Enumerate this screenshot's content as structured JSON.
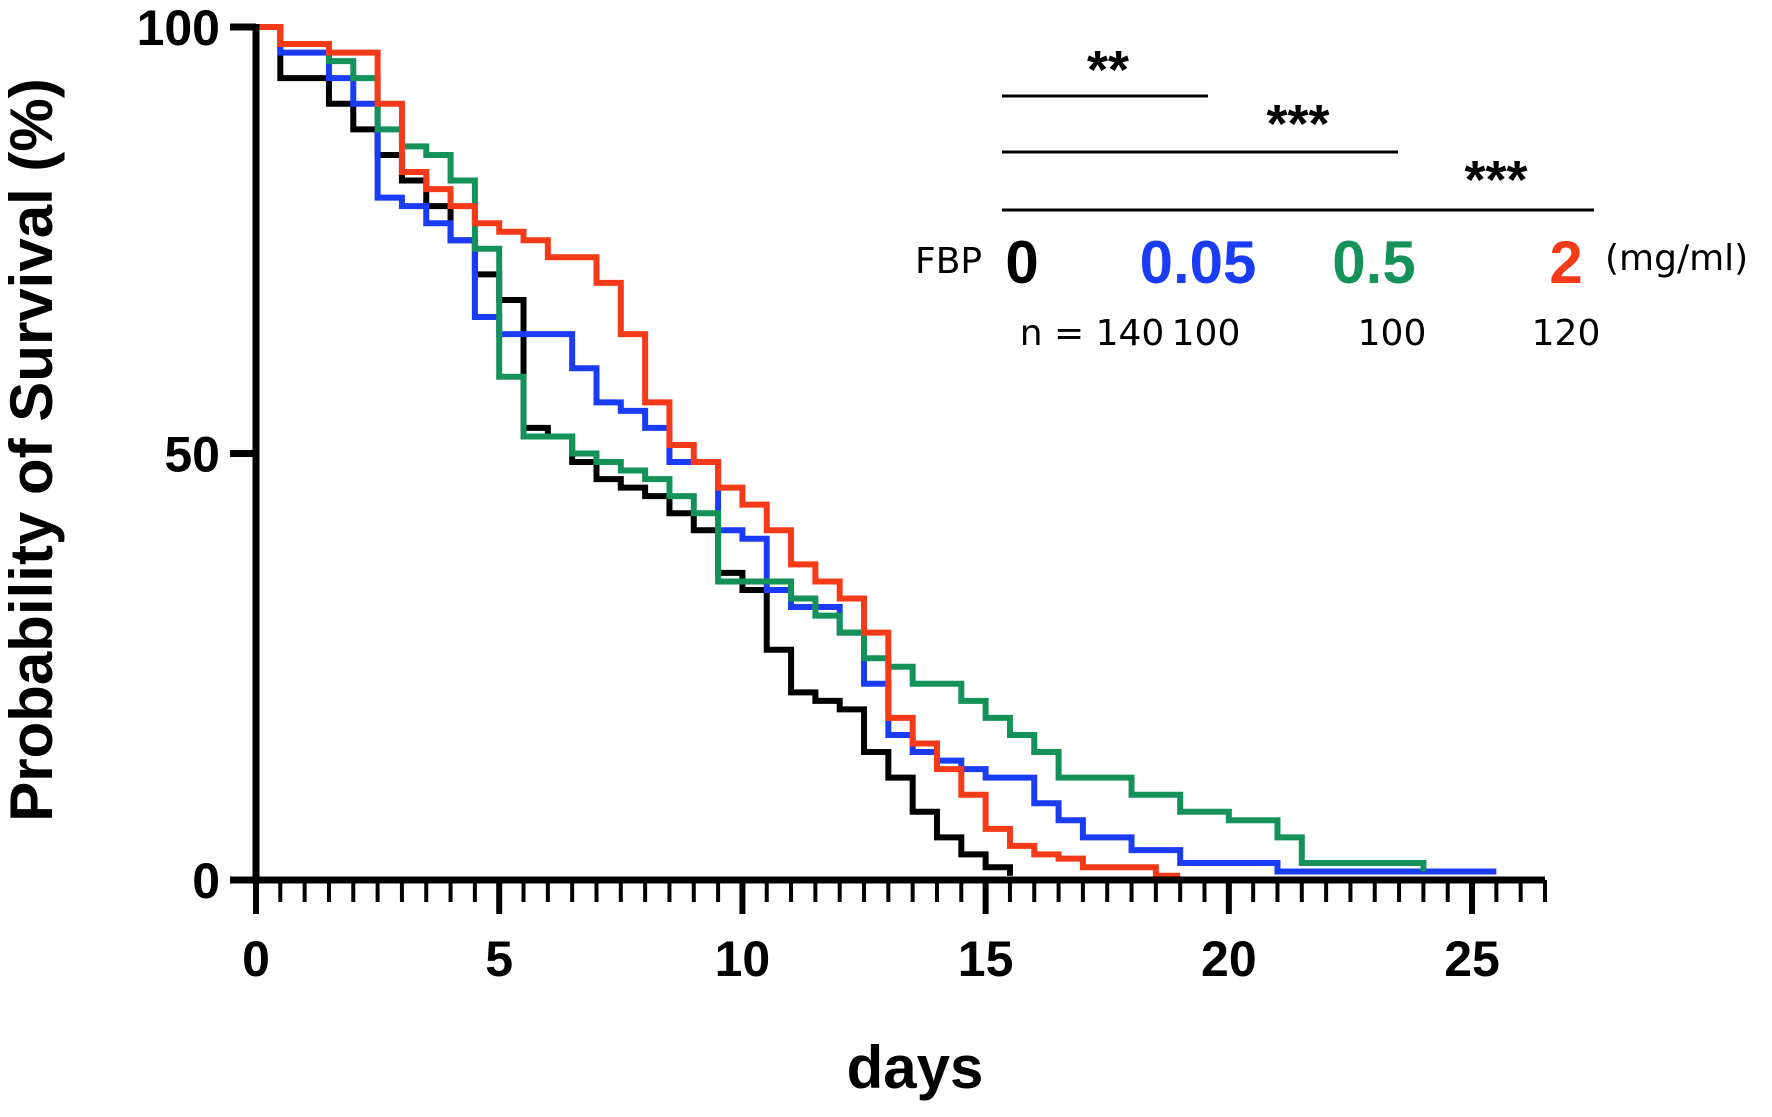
{
  "chart_data": {
    "type": "line",
    "style": "step",
    "xlabel": "days",
    "ylabel": "Probability of Survival (%)",
    "xlim": [
      0,
      26.5
    ],
    "ylim": [
      0,
      100
    ],
    "x_ticks": [
      0,
      5,
      10,
      15,
      20,
      25
    ],
    "x_minor_tick_step": 0.5,
    "y_ticks": [
      0,
      50,
      100
    ],
    "grid": false,
    "legend": {
      "placement": "top-right",
      "prefix": "FBP",
      "unit": "(mg/ml)",
      "entries": [
        {
          "label": "0",
          "n_label": "n = 140",
          "color": "#000000"
        },
        {
          "label": "0.05",
          "n_label": "100",
          "color": "#1a3cf5"
        },
        {
          "label": "0.5",
          "n_label": "100",
          "color": "#15915a"
        },
        {
          "label": "2",
          "n_label": "120",
          "color": "#f53a1a"
        }
      ]
    },
    "significance": [
      {
        "label": "**",
        "from": "0",
        "to": "0.05"
      },
      {
        "label": "***",
        "from": "0",
        "to": "0.5"
      },
      {
        "label": "***",
        "from": "0",
        "to": "2"
      }
    ],
    "series": [
      {
        "color": "#000000",
        "steps": [
          [
            0,
            100
          ],
          [
            0.5,
            94
          ],
          [
            1.5,
            91
          ],
          [
            2,
            88
          ],
          [
            2.5,
            85
          ],
          [
            3,
            82
          ],
          [
            3.5,
            79
          ],
          [
            4,
            75
          ],
          [
            4.5,
            71
          ],
          [
            5,
            68
          ],
          [
            5.5,
            63
          ],
          [
            5.5,
            53
          ],
          [
            6,
            52
          ],
          [
            6.5,
            49
          ],
          [
            7,
            47
          ],
          [
            7.5,
            46
          ],
          [
            8,
            45
          ],
          [
            8.5,
            43
          ],
          [
            9,
            41
          ],
          [
            9.5,
            36
          ],
          [
            10,
            34
          ],
          [
            10.5,
            27
          ],
          [
            11,
            22
          ],
          [
            11.5,
            21
          ],
          [
            12,
            20
          ],
          [
            12.5,
            15
          ],
          [
            13,
            12
          ],
          [
            13.5,
            8
          ],
          [
            14,
            5
          ],
          [
            14.5,
            3
          ],
          [
            15,
            1.5
          ],
          [
            15.5,
            0.5
          ]
        ],
        "end_x": 15.5
      },
      {
        "color": "#1a3cf5",
        "steps": [
          [
            0,
            100
          ],
          [
            0.5,
            97
          ],
          [
            1.5,
            94
          ],
          [
            2,
            91
          ],
          [
            2.5,
            80
          ],
          [
            3,
            79
          ],
          [
            3.5,
            77
          ],
          [
            4,
            75
          ],
          [
            4.5,
            66
          ],
          [
            5,
            64
          ],
          [
            5.5,
            64
          ],
          [
            6,
            64
          ],
          [
            6.5,
            60
          ],
          [
            7,
            56
          ],
          [
            7.5,
            55
          ],
          [
            8,
            53
          ],
          [
            8.5,
            49
          ],
          [
            9,
            49
          ],
          [
            9.5,
            41
          ],
          [
            10,
            40
          ],
          [
            10.5,
            34
          ],
          [
            11,
            32
          ],
          [
            11.5,
            32
          ],
          [
            12,
            29
          ],
          [
            12.5,
            23
          ],
          [
            13,
            17
          ],
          [
            13.5,
            15
          ],
          [
            14,
            14
          ],
          [
            14.5,
            13
          ],
          [
            15,
            12
          ],
          [
            16,
            9
          ],
          [
            16.5,
            7
          ],
          [
            17,
            5
          ],
          [
            18,
            3.5
          ],
          [
            19,
            2
          ],
          [
            21,
            1
          ],
          [
            25.5,
            1
          ]
        ],
        "end_x": 25.5
      },
      {
        "color": "#15915a",
        "steps": [
          [
            0,
            100
          ],
          [
            0.5,
            98
          ],
          [
            1.5,
            96
          ],
          [
            2,
            94
          ],
          [
            2.5,
            88
          ],
          [
            3,
            86
          ],
          [
            3.5,
            85
          ],
          [
            4,
            82
          ],
          [
            4.5,
            74
          ],
          [
            5,
            59
          ],
          [
            5.5,
            52
          ],
          [
            6,
            52
          ],
          [
            6.5,
            50
          ],
          [
            7,
            49
          ],
          [
            7.5,
            48
          ],
          [
            8,
            47
          ],
          [
            8.5,
            45
          ],
          [
            9,
            43
          ],
          [
            9.5,
            35
          ],
          [
            10,
            35
          ],
          [
            10.5,
            35
          ],
          [
            11,
            33
          ],
          [
            11.5,
            31
          ],
          [
            12,
            29
          ],
          [
            12.5,
            26
          ],
          [
            13,
            25
          ],
          [
            13.5,
            23
          ],
          [
            14,
            23
          ],
          [
            14.5,
            21
          ],
          [
            15,
            19
          ],
          [
            15.5,
            17
          ],
          [
            16,
            15
          ],
          [
            16.5,
            12
          ],
          [
            17,
            12
          ],
          [
            17.5,
            12
          ],
          [
            18,
            10
          ],
          [
            19,
            8
          ],
          [
            20,
            7
          ],
          [
            21,
            5
          ],
          [
            21.5,
            2
          ],
          [
            24,
            1
          ]
        ],
        "end_x": 24
      },
      {
        "color": "#f53a1a",
        "steps": [
          [
            0,
            100
          ],
          [
            0.5,
            98
          ],
          [
            1.5,
            97
          ],
          [
            2,
            97
          ],
          [
            2.5,
            91
          ],
          [
            3,
            83
          ],
          [
            3.5,
            81
          ],
          [
            4,
            79
          ],
          [
            4.5,
            77
          ],
          [
            5,
            76
          ],
          [
            5.5,
            75
          ],
          [
            6,
            73
          ],
          [
            6.5,
            73
          ],
          [
            7,
            70
          ],
          [
            7.5,
            64
          ],
          [
            8,
            56
          ],
          [
            8.5,
            51
          ],
          [
            9,
            49
          ],
          [
            9.5,
            46
          ],
          [
            10,
            44
          ],
          [
            10.5,
            41
          ],
          [
            11,
            37
          ],
          [
            11.5,
            35
          ],
          [
            12,
            33
          ],
          [
            12.5,
            29
          ],
          [
            13,
            19
          ],
          [
            13.5,
            16
          ],
          [
            14,
            13
          ],
          [
            14.5,
            10
          ],
          [
            15,
            6
          ],
          [
            15.5,
            4
          ],
          [
            16,
            3
          ],
          [
            16.5,
            2.5
          ],
          [
            17,
            1.5
          ],
          [
            18,
            1.5
          ],
          [
            18.5,
            0.5
          ],
          [
            19,
            0.5
          ]
        ],
        "end_x": 19
      }
    ]
  }
}
